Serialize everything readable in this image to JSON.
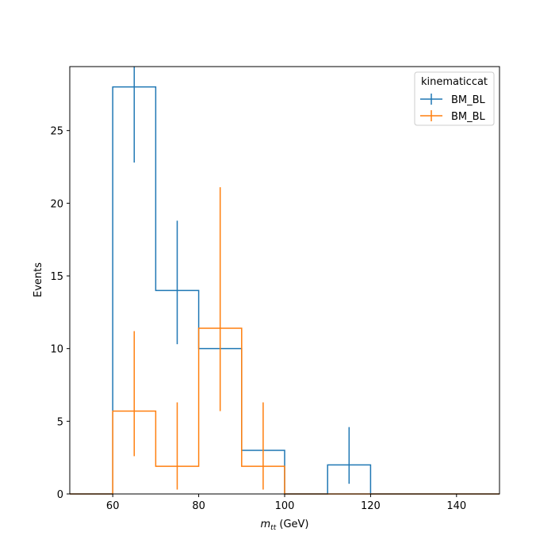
{
  "chart_data": {
    "type": "histogram",
    "xlabel_main": "m",
    "xlabel_sub": "tt",
    "xlabel_unit": " (GeV)",
    "ylabel": "Events",
    "xlim": [
      50,
      150
    ],
    "ylim": [
      0,
      29.4
    ],
    "xticks": [
      60,
      80,
      100,
      120,
      140
    ],
    "yticks": [
      0,
      5,
      10,
      15,
      20,
      25
    ],
    "bin_edges": [
      50,
      60,
      70,
      80,
      90,
      100,
      110,
      120,
      130,
      140,
      150
    ],
    "grid": false,
    "legend": {
      "title": "kinematiccat",
      "placement": "top-right"
    },
    "series": [
      {
        "name": "BM_BL",
        "color": "#1f77b4",
        "values": [
          0,
          28,
          14,
          10,
          3,
          0,
          2,
          0,
          0,
          0
        ],
        "errors": [
          null,
          [
            22.8,
            29.4
          ],
          [
            10.3,
            18.8
          ],
          null,
          null,
          null,
          [
            0.7,
            4.6
          ],
          null,
          null,
          null
        ]
      },
      {
        "name": "BM_BL",
        "color": "#ff7f0e",
        "values": [
          0,
          5.7,
          1.9,
          11.4,
          1.9,
          0,
          0,
          0,
          0,
          0
        ],
        "errors": [
          null,
          [
            2.6,
            11.2
          ],
          [
            0.3,
            6.3
          ],
          [
            5.7,
            21.1
          ],
          [
            0.3,
            6.3
          ],
          null,
          null,
          null,
          null,
          null
        ]
      }
    ]
  }
}
